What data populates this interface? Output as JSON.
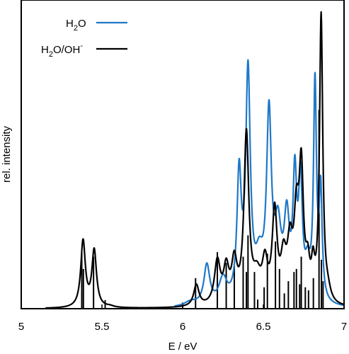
{
  "chart_data": {
    "type": "line",
    "xlabel": "E / eV",
    "ylabel": "rel. intensity",
    "xlim": [
      5,
      7
    ],
    "ylim": [
      0,
      1
    ],
    "x_ticks": [
      5,
      5.5,
      6,
      6.5,
      7
    ],
    "x_tick_labels": [
      "5",
      "5.5",
      "6",
      "6.5",
      "7"
    ],
    "grid": false,
    "legend_position": "top-left",
    "legend": [
      {
        "base": "H",
        "sub": "2",
        "rest": "O",
        "sup": "",
        "series": "h2o"
      },
      {
        "base": "H",
        "sub": "2",
        "rest": "O/OH",
        "sup": "-",
        "series": "h2o_oh"
      }
    ],
    "series": [
      {
        "id": "h2o",
        "color": "#1f78c8",
        "line_width": 2.2,
        "peaks": [
          [
            6.15,
            0.13,
            0.022
          ],
          [
            6.25,
            0.08,
            0.03
          ],
          [
            6.35,
            0.4,
            0.016
          ],
          [
            6.405,
            0.74,
            0.017
          ],
          [
            6.475,
            0.12,
            0.03
          ],
          [
            6.535,
            0.59,
            0.018
          ],
          [
            6.59,
            0.22,
            0.025
          ],
          [
            6.645,
            0.25,
            0.02
          ],
          [
            6.695,
            0.38,
            0.014
          ],
          [
            6.73,
            0.37,
            0.014
          ],
          [
            6.775,
            0.1,
            0.02
          ],
          [
            6.82,
            0.7,
            0.011
          ],
          [
            6.855,
            0.35,
            0.011
          ],
          [
            6.05,
            0.015,
            0.05
          ]
        ],
        "sticks": []
      },
      {
        "id": "h2o_oh",
        "color": "#000000",
        "line_width": 2.2,
        "peaks": [
          [
            5.383,
            0.217,
            0.017
          ],
          [
            5.452,
            0.185,
            0.017
          ],
          [
            5.55,
            0.004,
            0.03
          ],
          [
            6.085,
            0.07,
            0.02
          ],
          [
            6.215,
            0.14,
            0.022
          ],
          [
            6.27,
            0.11,
            0.02
          ],
          [
            6.32,
            0.13,
            0.02
          ],
          [
            6.395,
            0.55,
            0.018
          ],
          [
            6.46,
            0.08,
            0.03
          ],
          [
            6.51,
            0.12,
            0.02
          ],
          [
            6.57,
            0.29,
            0.018
          ],
          [
            6.625,
            0.13,
            0.02
          ],
          [
            6.665,
            0.17,
            0.02
          ],
          [
            6.705,
            0.25,
            0.018
          ],
          [
            6.735,
            0.41,
            0.016
          ],
          [
            6.775,
            0.1,
            0.015
          ],
          [
            6.808,
            0.1,
            0.012
          ],
          [
            6.858,
            0.94,
            0.012
          ],
          [
            6.9,
            0.03,
            0.02
          ]
        ],
        "sticks": [
          [
            5.375,
            0.185
          ],
          [
            5.385,
            0.13
          ],
          [
            5.448,
            0.17
          ],
          [
            5.52,
            0.028
          ],
          [
            6.0,
            0.02
          ],
          [
            6.08,
            0.1
          ],
          [
            6.215,
            0.185
          ],
          [
            6.27,
            0.15
          ],
          [
            6.32,
            0.14
          ],
          [
            6.375,
            0.17
          ],
          [
            6.405,
            0.24
          ],
          [
            6.395,
            0.12
          ],
          [
            6.445,
            0.12
          ],
          [
            6.465,
            0.03
          ],
          [
            6.505,
            0.07
          ],
          [
            6.525,
            0.18
          ],
          [
            6.575,
            0.22
          ],
          [
            6.6,
            0.13
          ],
          [
            6.63,
            0.05
          ],
          [
            6.655,
            0.09
          ],
          [
            6.69,
            0.12
          ],
          [
            6.705,
            0.13
          ],
          [
            6.725,
            0.08
          ],
          [
            6.735,
            0.17
          ],
          [
            6.76,
            0.07
          ],
          [
            6.78,
            0.06
          ],
          [
            6.81,
            0.1
          ],
          [
            6.845,
            0.65
          ],
          [
            6.86,
            0.16
          ],
          [
            6.87,
            0.09
          ]
        ]
      }
    ]
  }
}
